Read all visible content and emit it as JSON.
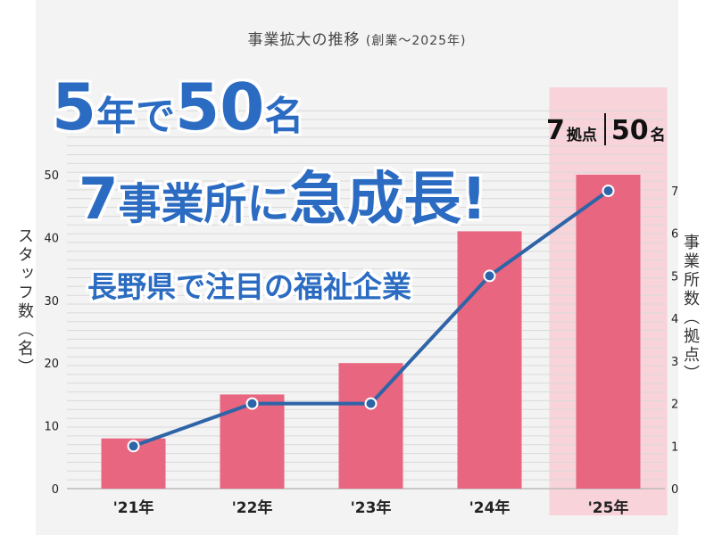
{
  "chart_data": {
    "type": "bar",
    "title": "事業拡大の推移",
    "subtitle": "(創業〜2025年)",
    "categories": [
      "'21年",
      "'22年",
      "'23年",
      "'24年",
      "'25年"
    ],
    "series": [
      {
        "name": "スタッフ数（名）",
        "type": "bar",
        "axis": "left",
        "values": [
          8,
          15,
          20,
          41,
          50
        ],
        "color": "#e8667f"
      },
      {
        "name": "事業所数（拠点）",
        "type": "line",
        "axis": "right",
        "values": [
          1,
          2,
          2,
          5,
          7
        ],
        "color": "#2e64a8"
      }
    ],
    "ylabel_left": "スタッフ数（名）",
    "ylabel_right": "事業所数（拠点）",
    "ylim_left": [
      0,
      50
    ],
    "ylim_right": [
      0,
      7
    ],
    "yticks_left": [
      "0",
      "10",
      "20",
      "30",
      "40",
      "50"
    ],
    "yticks_right": [
      "0",
      "1",
      "2",
      "3",
      "4",
      "5",
      "6",
      "7"
    ],
    "highlight_category": "'25年",
    "grid": true,
    "colors": {
      "bar": "#e8667f",
      "line": "#2e64a8",
      "highlight": "#f8d3da",
      "headline": "#2b6cc2"
    }
  },
  "headline": {
    "line1_a": "5",
    "line1_b": "年で",
    "line1_c": "50",
    "line1_d": "名",
    "line2_a": "7",
    "line2_b": "事業所に",
    "line2_c": "急成長",
    "line2_d": "!",
    "line3": "長野県で注目の福祉企業"
  },
  "callout": {
    "bases_value": "7",
    "bases_unit": "拠点",
    "staff_value": "50",
    "staff_unit": "名"
  }
}
